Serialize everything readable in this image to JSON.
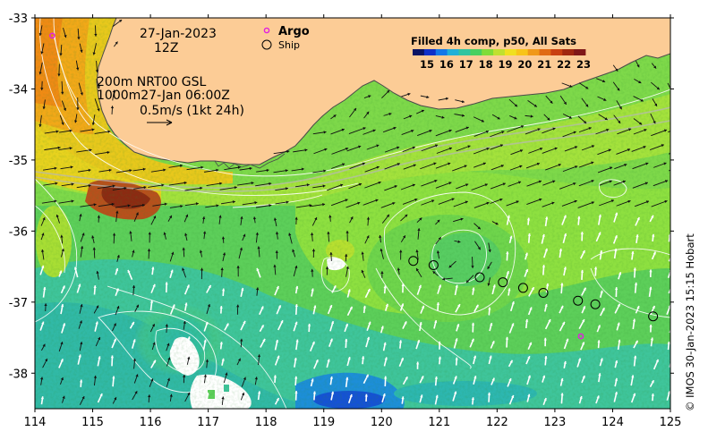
{
  "chart_data": {
    "type": "heatmap",
    "title": "",
    "date_line": "27-Jan-2023",
    "time_line": "12Z",
    "legend": {
      "argo_label": "Argo",
      "ship_label": "Ship"
    },
    "colorbar": {
      "title": "Filled 4h comp, p50, All Sats",
      "ticks": [
        "15",
        "16",
        "17",
        "18",
        "19",
        "20",
        "21",
        "22",
        "23"
      ],
      "range": [
        15,
        23
      ]
    },
    "info": {
      "line1": "200m  NRT00 GSL",
      "line2": "1000m27-Jan 06:00Z",
      "scale_label": "0.5m/s (1kt 24h)"
    },
    "credit": "© IMOS 30-Jan-2023 15:15 Hobart",
    "x_axis": {
      "range": [
        114,
        125
      ],
      "ticks": [
        "114",
        "115",
        "116",
        "117",
        "118",
        "119",
        "120",
        "121",
        "122",
        "123",
        "124",
        "125"
      ]
    },
    "y_axis": {
      "range": [
        -38.5,
        -33
      ],
      "ticks": [
        "-33",
        "-34",
        "-35",
        "-36",
        "-37",
        "-38"
      ]
    },
    "ship_positions": [
      [
        120.55,
        -36.42
      ],
      [
        120.9,
        -36.48
      ],
      [
        121.7,
        -36.65
      ],
      [
        122.1,
        -36.72
      ],
      [
        122.45,
        -36.8
      ],
      [
        122.8,
        -36.87
      ],
      [
        123.4,
        -36.98
      ],
      [
        123.7,
        -37.03
      ],
      [
        124.7,
        -37.2
      ]
    ],
    "argo_positions": [
      [
        114.3,
        -33.25
      ],
      [
        123.45,
        -37.48
      ]
    ],
    "colors": {
      "land": "#fccc96",
      "coast": "#4a4a4a",
      "ship_marker": "#000000",
      "argo_marker": "#e020e0"
    }
  }
}
